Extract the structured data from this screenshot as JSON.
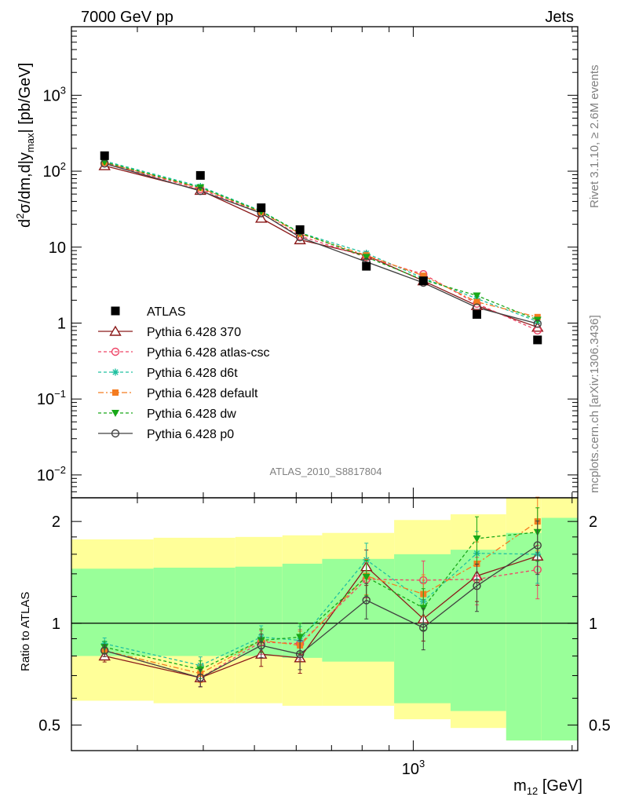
{
  "header": {
    "left": "7000 GeV pp",
    "right": "Jets"
  },
  "side_texts": {
    "rivet": "Rivet 3.1.10, ≥ 2.6M events",
    "mcplots": "mcplots.cern.ch [arXiv:1306.3436]"
  },
  "analysis_id": "ATLAS_2010_S8817804",
  "chart_data": [
    {
      "type": "line",
      "panel": "main",
      "ylabel_parts": {
        "d": "d",
        "sup2": "2",
        "sigma": "σ/dm,d|y",
        "sub": "max",
        "rest": "| [pb/GeV]"
      },
      "yscale": "log",
      "ylim": [
        0.005,
        8000
      ],
      "yticks": [
        {
          "v": 0.01,
          "base": "10",
          "exp": "−2"
        },
        {
          "v": 0.1,
          "base": "10",
          "exp": "−1"
        },
        {
          "v": 1,
          "base": "1",
          "exp": ""
        },
        {
          "v": 10,
          "base": "10",
          "exp": ""
        },
        {
          "v": 100,
          "base": "10",
          "exp": "2"
        },
        {
          "v": 1000,
          "base": "10",
          "exp": "3"
        }
      ],
      "x": [
        260,
        395,
        515,
        610,
        815,
        1045,
        1320,
        1720
      ],
      "xlim": [
        225,
        2050
      ],
      "xscale": "log",
      "legend_placement": "middle-left",
      "series": [
        {
          "name": "ATLAS",
          "style": "data",
          "color": "#000000",
          "marker": "square",
          "values": [
            160,
            88,
            33,
            17,
            5.6,
            3.6,
            1.3,
            0.6
          ]
        },
        {
          "name": "Pythia 6.428 370",
          "color": "#8b1a1a",
          "dash": "",
          "marker": "triangle-open",
          "values": [
            118,
            56,
            24,
            12.5,
            7.8,
            3.6,
            1.7,
            0.88
          ]
        },
        {
          "name": "Pythia 6.428 atlas-csc",
          "color": "#ee4466",
          "dash": "4,3",
          "marker": "circle-open",
          "values": [
            128,
            58,
            28,
            14,
            7.4,
            4.4,
            1.8,
            0.8
          ]
        },
        {
          "name": "Pythia 6.428 d6t",
          "color": "#20c0a0",
          "dash": "4,3",
          "marker": "asterisk",
          "values": [
            136,
            63,
            30,
            15.5,
            8.3,
            3.9,
            2.1,
            1.05
          ]
        },
        {
          "name": "Pythia 6.428 default",
          "color": "#f47c20",
          "dash": "7,3,2,3",
          "marker": "square-filled",
          "values": [
            130,
            60,
            29,
            15,
            7.8,
            4.2,
            1.9,
            1.2
          ]
        },
        {
          "name": "Pythia 6.428 dw",
          "color": "#18a818",
          "dash": "4,3",
          "marker": "triangle-down",
          "values": [
            132,
            61,
            29.5,
            15.5,
            7.4,
            3.7,
            2.3,
            1.1
          ]
        },
        {
          "name": "Pythia 6.428 p0",
          "color": "#404040",
          "dash": "",
          "marker": "circle-open",
          "values": [
            126,
            55,
            28,
            13.5,
            6.4,
            3.4,
            1.6,
            0.98
          ]
        }
      ]
    },
    {
      "type": "line",
      "panel": "ratio",
      "ylabel": "Ratio to ATLAS",
      "yscale": "log",
      "ylim": [
        0.42,
        2.35
      ],
      "yticks": [
        {
          "v": 0.5,
          "label": "0.5"
        },
        {
          "v": 1,
          "label": "1"
        },
        {
          "v": 2,
          "label": "2"
        }
      ],
      "xlabel_parts": {
        "m": "m",
        "sub": "12",
        "rest": " [GeV]"
      },
      "xticks": [
        {
          "v": 1000,
          "base": "10",
          "exp": "3"
        }
      ],
      "bands": {
        "edges": [
          225,
          322,
          460,
          565,
          672,
          920,
          1177,
          1500,
          1750,
          2050
        ],
        "yellow": [
          [
            0.59,
            1.77
          ],
          [
            0.58,
            1.79
          ],
          [
            0.58,
            1.8
          ],
          [
            0.57,
            1.82
          ],
          [
            0.57,
            1.85
          ],
          [
            0.52,
            2.02
          ],
          [
            0.49,
            2.1
          ],
          [
            0.45,
            2.6
          ],
          [
            0.45,
            2.6
          ]
        ],
        "green": [
          [
            0.8,
            1.45
          ],
          [
            0.8,
            1.46
          ],
          [
            0.8,
            1.47
          ],
          [
            0.79,
            1.5
          ],
          [
            0.77,
            1.55
          ],
          [
            0.58,
            1.6
          ],
          [
            0.55,
            1.65
          ],
          [
            0.45,
            1.85
          ],
          [
            0.45,
            2.05
          ]
        ],
        "yellow_color": "#ffff99",
        "green_color": "#99ff99"
      },
      "series": [
        {
          "name": "Pythia 6.428 370",
          "color": "#8b1a1a",
          "dash": "",
          "marker": "triangle-open",
          "values": [
            0.8,
            0.69,
            0.81,
            0.79,
            1.47,
            1.03,
            1.38,
            1.58
          ]
        },
        {
          "name": "Pythia 6.428 atlas-csc",
          "color": "#ee4466",
          "dash": "4,3",
          "marker": "circle-open",
          "values": [
            0.83,
            0.69,
            0.88,
            0.87,
            1.35,
            1.34,
            1.35,
            1.44
          ]
        },
        {
          "name": "Pythia 6.428 d6t",
          "color": "#20c0a0",
          "dash": "4,3",
          "marker": "asterisk",
          "values": [
            0.87,
            0.75,
            0.91,
            0.89,
            1.54,
            1.16,
            1.61,
            1.6
          ]
        },
        {
          "name": "Pythia 6.428 default",
          "color": "#f47c20",
          "dash": "7,3,2,3",
          "marker": "square-filled",
          "values": [
            0.83,
            0.71,
            0.89,
            0.86,
            1.38,
            1.22,
            1.5,
            2.0
          ]
        },
        {
          "name": "Pythia 6.428 dw",
          "color": "#18a818",
          "dash": "4,3",
          "marker": "triangle-down",
          "values": [
            0.85,
            0.73,
            0.89,
            0.91,
            1.37,
            1.11,
            1.78,
            1.86
          ]
        },
        {
          "name": "Pythia 6.428 p0",
          "color": "#404040",
          "dash": "",
          "marker": "circle-open",
          "values": [
            0.83,
            0.69,
            0.86,
            0.81,
            1.17,
            0.97,
            1.29,
            1.7
          ]
        }
      ]
    }
  ]
}
